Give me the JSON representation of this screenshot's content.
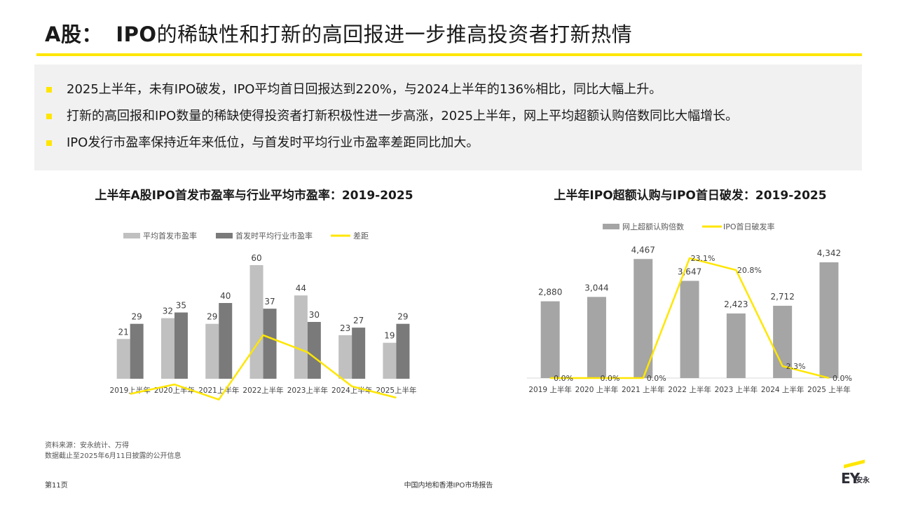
{
  "header": {
    "title_prefix": "A股：",
    "title_main": "IPO的稀缺性和打新的高回报进一步推高投资者打新热情"
  },
  "bullets": [
    "2025上半年，未有IPO破发，IPO平均首日回报达到220%，与2024上半年的136%相比，同比大幅上升。",
    "打新的高回报和IPO数量的稀缺使得投资者打新积极性进一步高涨，2025上半年，网上平均超额认购倍数同比大幅增长。",
    "IPO发行市盈率保持近年来低位，与首发时平均行业市盈率差距同比加大。"
  ],
  "colors": {
    "accent": "#ffe600",
    "bar_light": "#c0c0c0",
    "bar_dark": "#7a7a7a",
    "bar_mid": "#a5a5a5",
    "line": "#ffe600"
  },
  "chart_data": [
    {
      "type": "bar",
      "title": "上半年A股IPO首发市盈率与行业平均市盈率：2019-2025",
      "categories": [
        "2019上半年",
        "2020上半年",
        "2021上半年",
        "2022上半年",
        "2023上半年",
        "2024上半年",
        "2025上半年"
      ],
      "series": [
        {
          "name": "平均首发市盈率",
          "kind": "bar",
          "values": [
            21,
            32,
            29,
            60,
            44,
            23,
            19
          ]
        },
        {
          "name": "首发时平均行业市盈率",
          "kind": "bar",
          "values": [
            29,
            35,
            40,
            37,
            30,
            27,
            29
          ]
        },
        {
          "name": "差距",
          "kind": "line",
          "values": [
            -8,
            -3,
            -11,
            23,
            14,
            -4,
            -10
          ]
        }
      ],
      "ylim": [
        -12,
        66
      ],
      "legend": "top-center",
      "grid": false
    },
    {
      "type": "bar",
      "title": "上半年IPO超额认购与IPO首日破发：2019-2025",
      "categories": [
        "2019 上半年",
        "2020 上半年",
        "2021 上半年",
        "2022 上半年",
        "2023 上半年",
        "2024 上半年",
        "2025 上半年"
      ],
      "series": [
        {
          "name": "网上超额认购倍数",
          "kind": "bar",
          "values": [
            2880,
            3044,
            4467,
            3647,
            2423,
            2712,
            4342
          ],
          "labels": [
            "2,880",
            "3,044",
            "4,467",
            "3,647",
            "2,423",
            "2,712",
            "4,342"
          ]
        },
        {
          "name": "IPO首日破发率",
          "kind": "line",
          "values": [
            0.0,
            0.0,
            0.0,
            23.1,
            20.8,
            2.3,
            0.0
          ],
          "labels": [
            "0.0%",
            "0.0%",
            "0.0%",
            "23.1%",
            "20.8%",
            "2.3%",
            "0.0%"
          ]
        }
      ],
      "ylim": [
        0,
        5000
      ],
      "y2lim": [
        0,
        27
      ],
      "legend": "top-center",
      "grid": false
    }
  ],
  "footer": {
    "source_line1": "资料来源：安永统计、万得",
    "source_line2": "数据截止至2025年6月11日披露的公开信息",
    "page": "第11页",
    "report": "中国内地和香港IPO市场报告",
    "logo_text": "EY",
    "logo_cn": "安永"
  }
}
